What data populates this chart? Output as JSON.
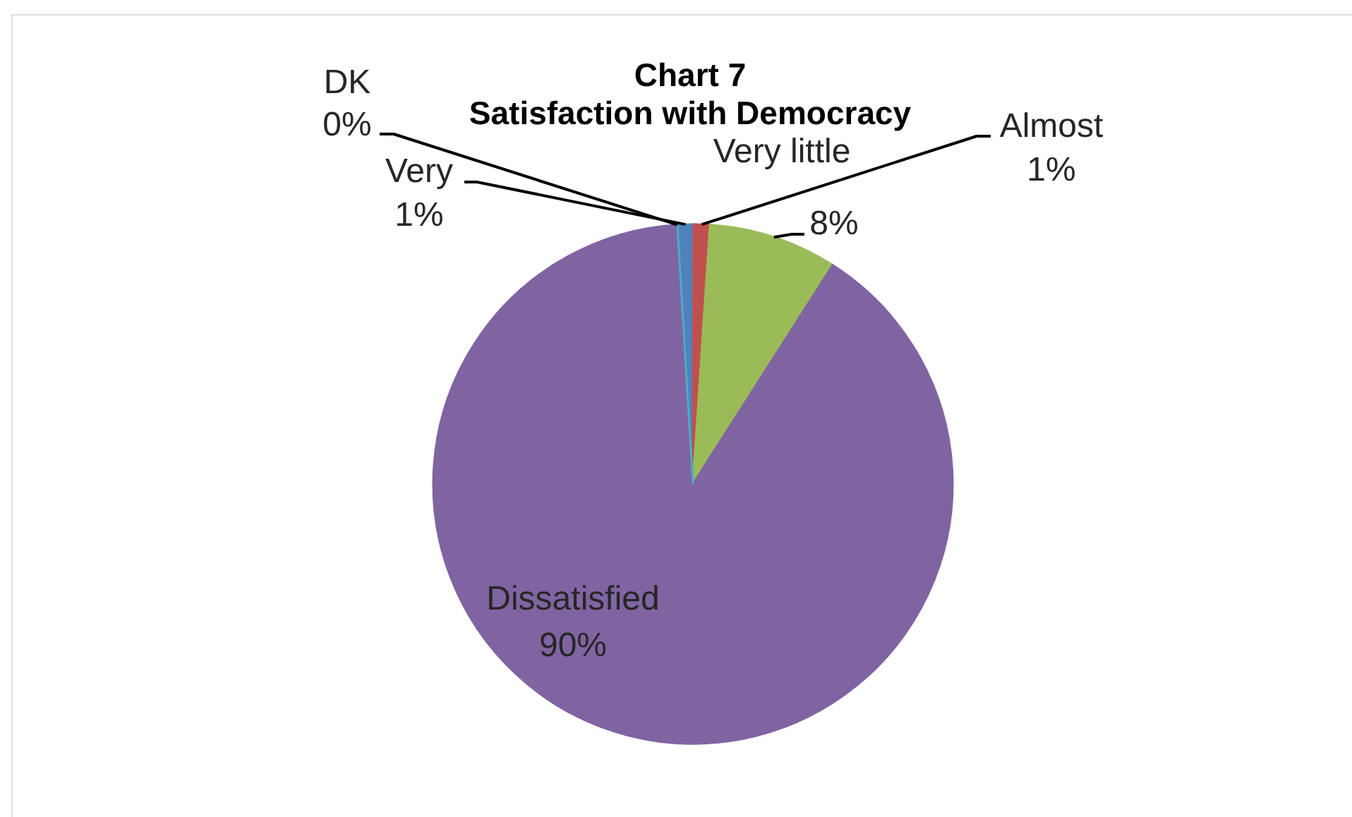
{
  "chart_data": {
    "type": "pie",
    "title": "Chart  7",
    "subtitle": "Satisfaction with Democracy",
    "categories": [
      "Very",
      "Almost",
      "Very little",
      "Dissatisfied",
      "DK"
    ],
    "values": [
      1,
      1,
      8,
      90,
      0
    ],
    "value_labels": [
      "1%",
      "1%",
      "8%",
      "90%",
      "0%"
    ],
    "colors": [
      "#4f81bd",
      "#c0504d",
      "#9bbb59",
      "#8064a2",
      "#4bacc6"
    ]
  }
}
